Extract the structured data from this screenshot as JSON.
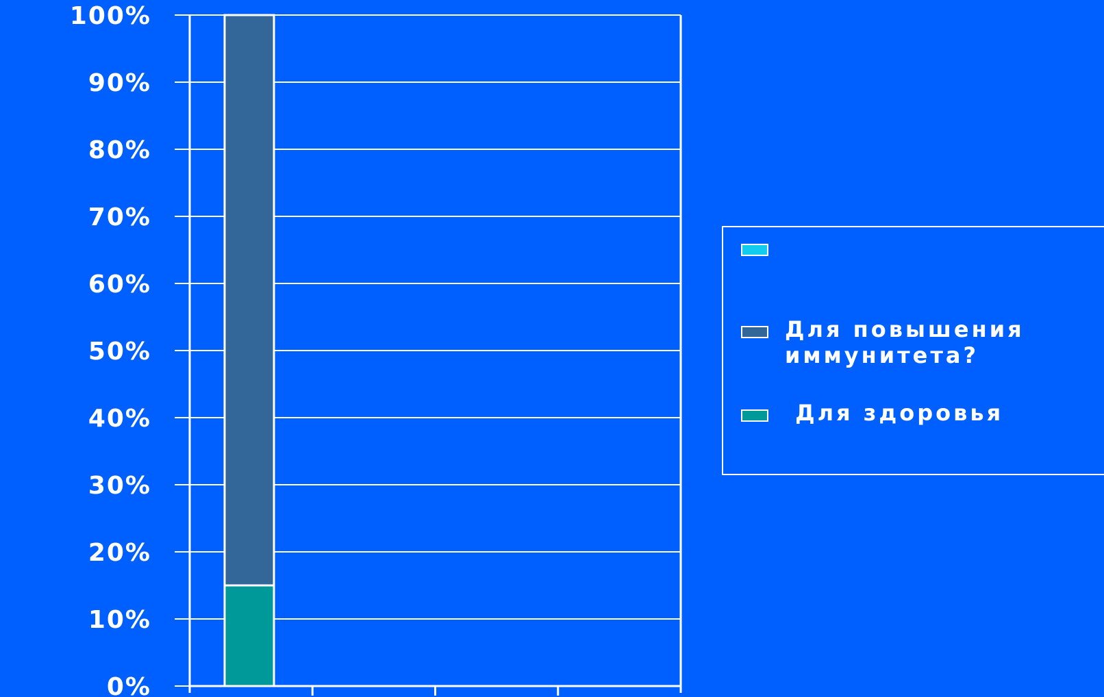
{
  "chart_data": {
    "type": "bar",
    "stacked": true,
    "percent_stacked": true,
    "categories": [
      ""
    ],
    "series": [
      {
        "name": "",
        "values": [
          0
        ],
        "color": "#11CCEE"
      },
      {
        "name": "Для повышения иммунитета?",
        "values": [
          85
        ],
        "color": "#336699"
      },
      {
        "name": " Для здоровья",
        "values": [
          15
        ],
        "color": "#009999"
      }
    ],
    "y_ticks": [
      "0%",
      "10%",
      "20%",
      "30%",
      "40%",
      "50%",
      "60%",
      "70%",
      "80%",
      "90%",
      "100%"
    ],
    "ylim": [
      0,
      100
    ],
    "grid": true,
    "legend_position": "right",
    "title": "",
    "xlabel": "",
    "ylabel": ""
  },
  "colors": {
    "background": "#0060FF",
    "axis": "#FFFFFF",
    "gridline": "#FFFFFF"
  }
}
